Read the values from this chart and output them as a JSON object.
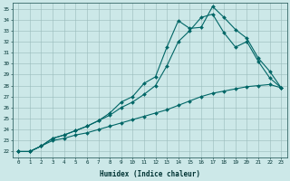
{
  "title": "",
  "xlabel": "Humidex (Indice chaleur)",
  "bg_color": "#cce8e8",
  "grid_color": "#99bbbb",
  "line_color": "#006666",
  "xmin": 0,
  "xmax": 23,
  "ymin": 22,
  "ymax": 35,
  "line1_x": [
    0,
    1,
    2,
    3,
    4,
    5,
    6,
    7,
    8,
    9,
    10,
    11,
    12,
    13,
    14,
    15,
    16,
    17,
    18,
    19,
    20,
    21,
    22,
    23
  ],
  "line1_y": [
    22.0,
    22.0,
    22.5,
    23.2,
    23.5,
    23.9,
    24.3,
    24.8,
    25.5,
    26.5,
    27.0,
    28.2,
    28.8,
    31.5,
    33.9,
    33.2,
    33.3,
    35.2,
    34.2,
    33.1,
    32.3,
    30.5,
    29.3,
    27.8
  ],
  "line2_x": [
    0,
    1,
    2,
    3,
    4,
    5,
    6,
    7,
    8,
    9,
    10,
    11,
    12,
    13,
    14,
    15,
    16,
    17,
    18,
    19,
    20,
    21,
    22,
    23
  ],
  "line2_y": [
    22.0,
    22.0,
    22.5,
    23.2,
    23.5,
    23.9,
    24.3,
    24.8,
    25.3,
    26.0,
    26.5,
    27.2,
    28.0,
    29.8,
    32.0,
    33.0,
    34.2,
    34.5,
    32.8,
    31.5,
    32.0,
    30.2,
    28.7,
    27.8
  ],
  "line3_x": [
    0,
    1,
    2,
    3,
    4,
    5,
    6,
    7,
    8,
    9,
    10,
    11,
    12,
    13,
    14,
    15,
    16,
    17,
    18,
    19,
    20,
    21,
    22,
    23
  ],
  "line3_y": [
    22.0,
    22.0,
    22.5,
    23.0,
    23.2,
    23.5,
    23.7,
    24.0,
    24.3,
    24.6,
    24.9,
    25.2,
    25.5,
    25.8,
    26.2,
    26.6,
    27.0,
    27.3,
    27.5,
    27.7,
    27.9,
    28.0,
    28.1,
    27.8
  ]
}
